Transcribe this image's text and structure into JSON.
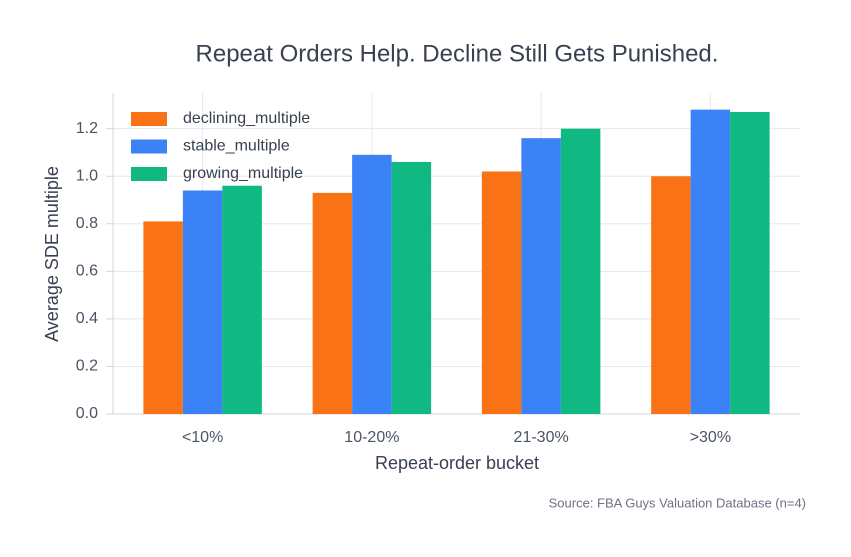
{
  "chart_data": {
    "type": "bar",
    "title": "Repeat Orders Help. Decline Still Gets Punished.",
    "x_label": "Repeat-order bucket",
    "y_label": "Average SDE multiple",
    "source": "Source: FBA Guys Valuation Database (n=4)",
    "categories": [
      "<10%",
      "10-20%",
      "21-30%",
      ">30%"
    ],
    "series": [
      {
        "name": "declining_multiple",
        "color": "#f97316",
        "values": [
          0.81,
          0.93,
          1.02,
          1.0
        ]
      },
      {
        "name": "stable_multiple",
        "color": "#3b82f6",
        "values": [
          0.94,
          1.09,
          1.16,
          1.28
        ]
      },
      {
        "name": "growing_multiple",
        "color": "#10b981",
        "values": [
          0.96,
          1.06,
          1.2,
          1.27
        ]
      }
    ],
    "ylim": [
      0,
      1.35
    ],
    "yticks": [
      {
        "value": 0,
        "label": "0.0"
      },
      0.2,
      0.4,
      0.6,
      0.8,
      {
        "value": 1,
        "label": "1.0"
      },
      1.2
    ],
    "grid": true,
    "legend": "upper-left"
  }
}
